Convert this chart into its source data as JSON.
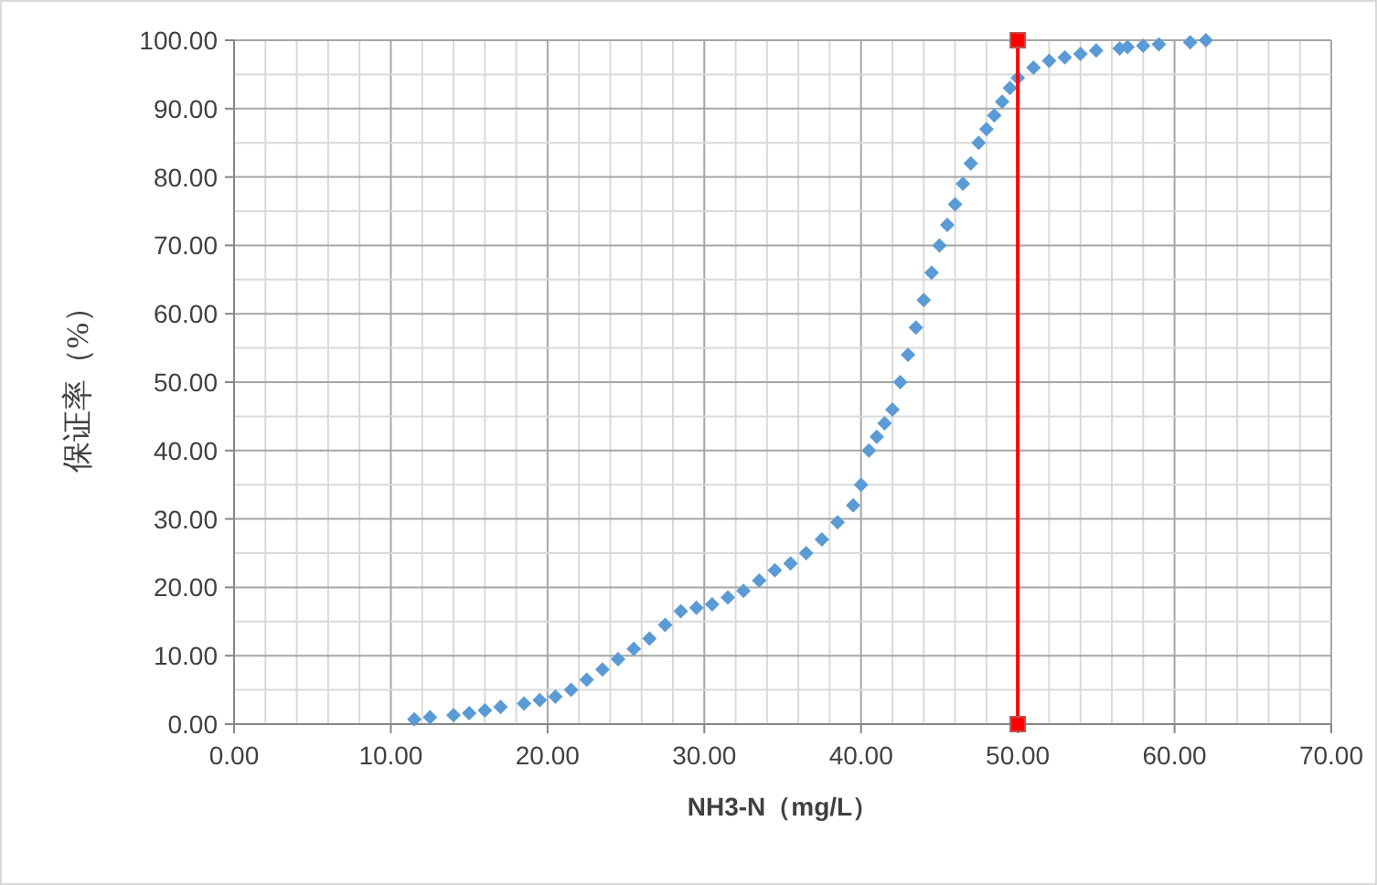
{
  "chart_data": {
    "type": "scatter",
    "xlabel": "NH3-N（mg/L）",
    "ylabel": "保证率（%）",
    "marker": "diamond",
    "grid": true,
    "xlim": [
      0,
      70
    ],
    "ylim": [
      0,
      100
    ],
    "xticks": [
      {
        "value": 0,
        "label": "0.00"
      },
      {
        "value": 2,
        "label": null
      },
      {
        "value": 4,
        "label": null
      },
      {
        "value": 6,
        "label": null
      },
      {
        "value": 8,
        "label": null
      },
      {
        "value": 10,
        "label": "10.00"
      },
      {
        "value": 12,
        "label": null
      },
      {
        "value": 14,
        "label": null
      },
      {
        "value": 16,
        "label": null
      },
      {
        "value": 18,
        "label": null
      },
      {
        "value": 20,
        "label": "20.00"
      },
      {
        "value": 22,
        "label": null
      },
      {
        "value": 24,
        "label": null
      },
      {
        "value": 26,
        "label": null
      },
      {
        "value": 28,
        "label": null
      },
      {
        "value": 30,
        "label": "30.00"
      },
      {
        "value": 32,
        "label": null
      },
      {
        "value": 34,
        "label": null
      },
      {
        "value": 36,
        "label": null
      },
      {
        "value": 38,
        "label": null
      },
      {
        "value": 40,
        "label": "40.00"
      },
      {
        "value": 42,
        "label": null
      },
      {
        "value": 44,
        "label": null
      },
      {
        "value": 46,
        "label": null
      },
      {
        "value": 48,
        "label": null
      },
      {
        "value": 50,
        "label": "50.00"
      },
      {
        "value": 52,
        "label": null
      },
      {
        "value": 54,
        "label": null
      },
      {
        "value": 56,
        "label": null
      },
      {
        "value": 58,
        "label": null
      },
      {
        "value": 60,
        "label": "60.00"
      },
      {
        "value": 62,
        "label": null
      },
      {
        "value": 64,
        "label": null
      },
      {
        "value": 66,
        "label": null
      },
      {
        "value": 68,
        "label": null
      },
      {
        "value": 70,
        "label": "70.00"
      }
    ],
    "yticks": [
      {
        "value": 0,
        "label": "0.00"
      },
      {
        "value": 5,
        "label": null
      },
      {
        "value": 10,
        "label": "10.00"
      },
      {
        "value": 15,
        "label": null
      },
      {
        "value": 20,
        "label": "20.00"
      },
      {
        "value": 25,
        "label": null
      },
      {
        "value": 30,
        "label": "30.00"
      },
      {
        "value": 35,
        "label": null
      },
      {
        "value": 40,
        "label": "40.00"
      },
      {
        "value": 45,
        "label": null
      },
      {
        "value": 50,
        "label": "50.00"
      },
      {
        "value": 55,
        "label": null
      },
      {
        "value": 60,
        "label": "60.00"
      },
      {
        "value": 65,
        "label": null
      },
      {
        "value": 70,
        "label": "70.00"
      },
      {
        "value": 75,
        "label": null
      },
      {
        "value": 80,
        "label": "80.00"
      },
      {
        "value": 85,
        "label": null
      },
      {
        "value": 90,
        "label": "90.00"
      },
      {
        "value": 95,
        "label": null
      },
      {
        "value": 100,
        "label": "100.00"
      }
    ],
    "series": [
      {
        "color": "#5b9bd5",
        "x": [
          11.5,
          12.5,
          14,
          15,
          16,
          17,
          18.5,
          19.5,
          20.5,
          21.5,
          22.5,
          23.5,
          24.5,
          25.5,
          26.5,
          27.5,
          28.5,
          29.5,
          30.5,
          31.5,
          32.5,
          33.5,
          34.5,
          35.5,
          36.5,
          37.5,
          38.5,
          39.5,
          40,
          40.5,
          41,
          41.5,
          42,
          42.5,
          43,
          43.5,
          44,
          44.5,
          45,
          45.5,
          46,
          46.5,
          47,
          47.5,
          48,
          48.5,
          49,
          49.5,
          50,
          51,
          52,
          53,
          54,
          55,
          56.5,
          57,
          58,
          59,
          61,
          62
        ],
        "values": [
          0.7,
          1,
          1.3,
          1.6,
          2,
          2.5,
          3,
          3.5,
          4,
          5,
          6.5,
          8,
          9.5,
          11,
          12.5,
          14.5,
          16.5,
          17,
          17.5,
          18.5,
          19.5,
          21,
          22.5,
          23.5,
          25,
          27,
          29.5,
          32,
          35,
          40,
          42,
          44,
          46,
          50,
          54,
          58,
          62,
          66,
          70,
          73,
          76,
          79,
          82,
          85,
          87,
          89,
          91,
          93,
          94.5,
          96,
          97,
          97.5,
          98,
          98.5,
          98.8,
          99,
          99.2,
          99.4,
          99.7,
          100
        ]
      },
      {
        "type": "line",
        "color": "#ff0000",
        "marker": "square",
        "x": [
          50,
          50
        ],
        "values": [
          0,
          100
        ]
      }
    ]
  }
}
